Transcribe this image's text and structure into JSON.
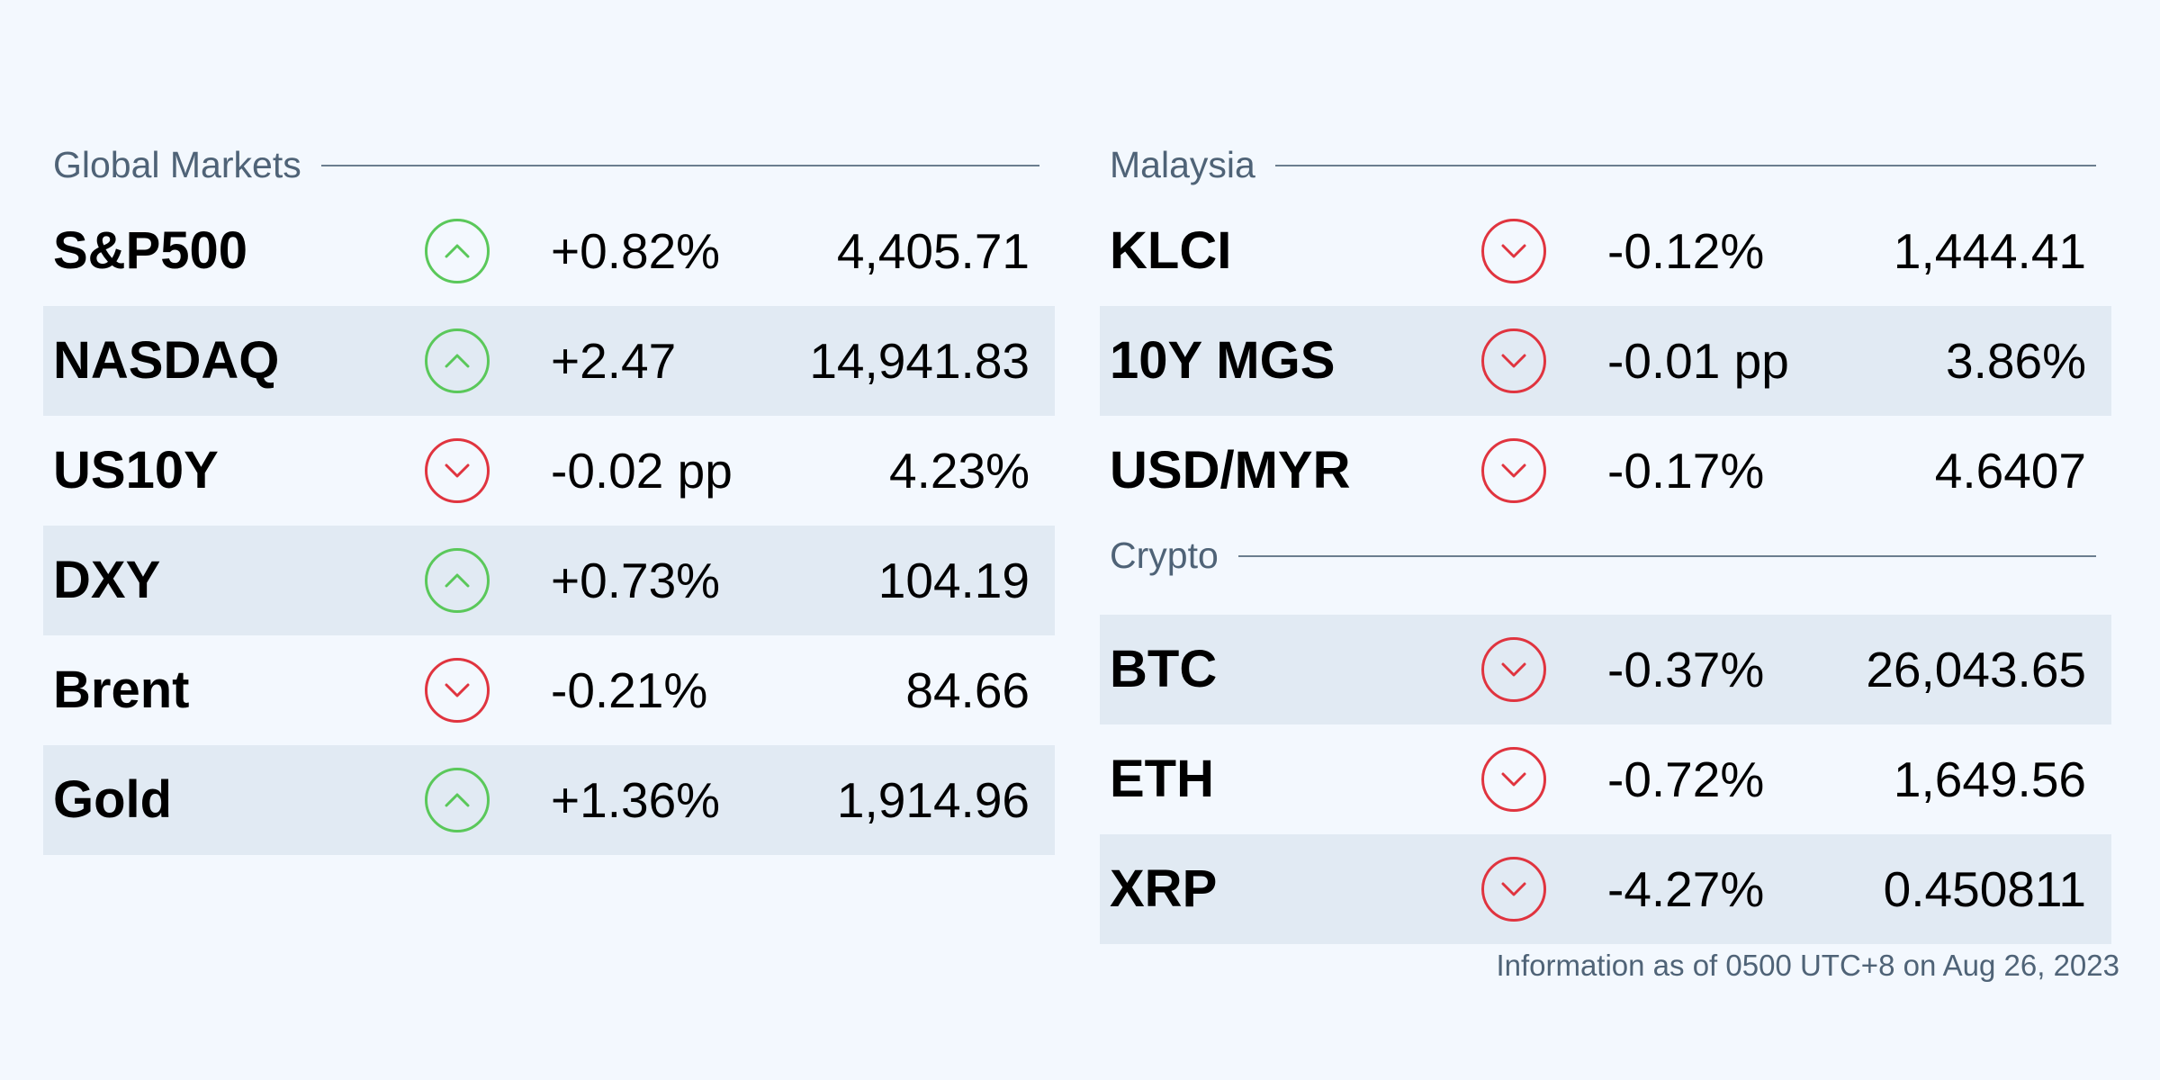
{
  "global": {
    "title": "Global Markets",
    "rows": [
      {
        "name": "S&P500",
        "direction": "up",
        "icon": "chevron-up-icon",
        "change": "+0.82%",
        "value": "4,405.71"
      },
      {
        "name": "NASDAQ",
        "direction": "up",
        "icon": "chevron-up-icon",
        "change": "+2.47",
        "value": "14,941.83"
      },
      {
        "name": "US10Y",
        "direction": "down",
        "icon": "chevron-down-icon",
        "change": "-0.02 pp",
        "value": "4.23%"
      },
      {
        "name": "DXY",
        "direction": "up",
        "icon": "chevron-up-icon",
        "change": "+0.73%",
        "value": "104.19"
      },
      {
        "name": "Brent",
        "direction": "down",
        "icon": "chevron-down-icon",
        "change": "-0.21%",
        "value": "84.66"
      },
      {
        "name": "Gold",
        "direction": "up",
        "icon": "chevron-up-icon",
        "change": "+1.36%",
        "value": "1,914.96"
      }
    ]
  },
  "malaysia": {
    "title": "Malaysia",
    "rows": [
      {
        "name": "KLCI",
        "direction": "down",
        "icon": "chevron-down-icon",
        "change": "-0.12%",
        "value": "1,444.41"
      },
      {
        "name": "10Y MGS",
        "direction": "down",
        "icon": "chevron-down-icon",
        "change": "-0.01 pp",
        "value": "3.86%"
      },
      {
        "name": "USD/MYR",
        "direction": "down",
        "icon": "chevron-down-icon",
        "change": "-0.17%",
        "value": "4.6407"
      }
    ]
  },
  "crypto": {
    "title": "Crypto",
    "rows": [
      {
        "name": "BTC",
        "direction": "down",
        "icon": "chevron-down-icon",
        "change": "-0.37%",
        "value": "26,043.65"
      },
      {
        "name": "ETH",
        "direction": "down",
        "icon": "chevron-down-icon",
        "change": "-0.72%",
        "value": "1,649.56"
      },
      {
        "name": "XRP",
        "direction": "down",
        "icon": "chevron-down-icon",
        "change": "-4.27%",
        "value": "0.450811"
      }
    ]
  },
  "footnote": "Information as of 0500 UTC+8 on Aug 26, 2023",
  "colors": {
    "background": "#f3f8fe",
    "row_shade": "#e1eaf3",
    "up": "#5ac85a",
    "down": "#e0343f",
    "muted_text": "#4f6377",
    "rule": "#6b7e8f"
  }
}
